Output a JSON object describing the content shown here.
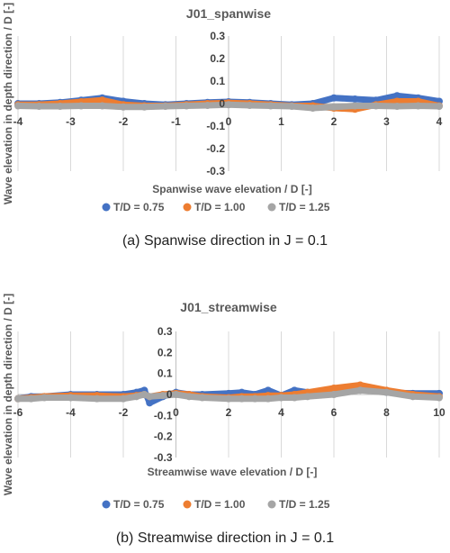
{
  "chart_data": [
    {
      "type": "scatter",
      "title": "J01_spanwise",
      "xlabel": "Spanwise wave elevation / D [-]",
      "ylabel": "Wave elevation in depth direction / D [-]",
      "xlim": [
        -4,
        4
      ],
      "ylim": [
        -0.3,
        0.3
      ],
      "x_ticks": [
        "-4",
        "-3",
        "-2",
        "-1",
        "0",
        "1",
        "2",
        "3",
        "4"
      ],
      "y_ticks": [
        "0.3",
        "0.2",
        "0.1",
        "0",
        "-0.1",
        "-0.2",
        "-0.3"
      ],
      "grid": "vertical",
      "legend_position": "bottom",
      "caption": "(a) Spanwise direction in J = 0.1",
      "series": [
        {
          "name": "T/D = 0.75",
          "color": "#4472C4",
          "x": [
            -4,
            -3.6,
            -3.2,
            -2.8,
            -2.4,
            -2.0,
            -1.6,
            -1.2,
            -0.8,
            -0.4,
            0,
            0.4,
            0.8,
            1.2,
            1.6,
            2.0,
            2.4,
            2.8,
            3.2,
            3.6,
            4
          ],
          "y": [
            0.0,
            0.0,
            0.005,
            0.015,
            0.025,
            0.01,
            0.0,
            -0.005,
            0.0,
            0.005,
            0.008,
            0.005,
            0.0,
            -0.005,
            0.0,
            0.025,
            0.02,
            0.015,
            0.035,
            0.025,
            0.01
          ]
        },
        {
          "name": "T/D = 1.00",
          "color": "#ED7D31",
          "x": [
            -4,
            -3.6,
            -3.2,
            -2.8,
            -2.4,
            -2.0,
            -1.6,
            -1.2,
            -0.8,
            -0.4,
            0,
            0.4,
            0.8,
            1.2,
            1.6,
            2.0,
            2.4,
            2.8,
            3.2,
            3.6,
            4
          ],
          "y": [
            -0.005,
            -0.005,
            0.0,
            0.008,
            0.015,
            -0.005,
            -0.01,
            -0.01,
            -0.005,
            0.0,
            0.003,
            0.0,
            -0.005,
            -0.01,
            -0.01,
            -0.02,
            -0.025,
            -0.005,
            0.01,
            0.01,
            -0.01
          ]
        },
        {
          "name": "T/D = 1.25",
          "color": "#A5A5A5",
          "x": [
            -4,
            -3.6,
            -3.2,
            -2.8,
            -2.4,
            -2.0,
            -1.6,
            -1.2,
            -0.8,
            -0.4,
            0,
            0.4,
            0.8,
            1.2,
            1.6,
            2.0,
            2.4,
            2.8,
            3.2,
            3.6,
            4
          ],
          "y": [
            -0.01,
            -0.012,
            -0.012,
            -0.01,
            -0.01,
            -0.015,
            -0.015,
            -0.012,
            -0.01,
            -0.008,
            -0.005,
            -0.008,
            -0.01,
            -0.012,
            -0.02,
            -0.015,
            -0.01,
            -0.01,
            -0.012,
            -0.01,
            -0.012
          ]
        }
      ]
    },
    {
      "type": "scatter",
      "title": "J01_streamwise",
      "xlabel": "Streamwise wave elevation / D [-]",
      "ylabel": "Wave elevation in depth direction / D [-]",
      "xlim": [
        -6,
        10
      ],
      "ylim": [
        -0.3,
        0.3
      ],
      "x_ticks": [
        "-6",
        "-4",
        "-2",
        "0",
        "2",
        "4",
        "6",
        "8",
        "10"
      ],
      "y_ticks": [
        "0.3",
        "0.2",
        "0.1",
        "0",
        "-0.1",
        "-0.2",
        "-0.3"
      ],
      "grid": "vertical",
      "legend_position": "bottom",
      "caption": "(b) Streamwise direction in J = 0.1",
      "series": [
        {
          "name": "T/D = 0.75",
          "color": "#4472C4",
          "x": [
            -6,
            -5.5,
            -5,
            -4,
            -3,
            -2,
            -1.5,
            -1.2,
            -1.0,
            -0.5,
            0,
            0.5,
            1,
            2,
            2.5,
            3,
            3.5,
            4,
            4.5,
            5,
            6,
            7,
            8,
            9,
            10
          ],
          "y": [
            -0.02,
            -0.01,
            -0.01,
            0.0,
            0.0,
            0.0,
            0.01,
            0.02,
            -0.04,
            -0.01,
            0.01,
            0.0,
            0.0,
            0.005,
            0.01,
            0.0,
            0.02,
            -0.005,
            0.02,
            0.01,
            0.02,
            0.03,
            0.01,
            0.005,
            0.005
          ]
        },
        {
          "name": "T/D = 1.00",
          "color": "#ED7D31",
          "x": [
            -6,
            -5.5,
            -5,
            -4,
            -3,
            -2,
            -1.5,
            -1.2,
            -1.0,
            -0.5,
            0,
            0.5,
            1,
            2,
            2.5,
            3,
            3.5,
            4,
            4.5,
            5,
            6,
            7,
            8,
            9,
            10
          ],
          "y": [
            -0.02,
            -0.015,
            -0.01,
            -0.005,
            -0.005,
            -0.01,
            -0.005,
            0.0,
            -0.01,
            0.0,
            0.005,
            0.0,
            -0.01,
            -0.015,
            -0.01,
            -0.01,
            -0.005,
            -0.005,
            0.0,
            0.01,
            0.03,
            0.045,
            0.02,
            0.0,
            -0.01
          ]
        },
        {
          "name": "T/D = 1.25",
          "color": "#A5A5A5",
          "x": [
            -6,
            -5.5,
            -5,
            -4,
            -3,
            -2,
            -1.5,
            -1.2,
            -1.0,
            -0.5,
            0,
            0.5,
            1,
            2,
            2.5,
            3,
            3.5,
            4,
            4.5,
            5,
            6,
            7,
            8,
            9,
            10
          ],
          "y": [
            -0.02,
            -0.02,
            -0.015,
            -0.015,
            -0.02,
            -0.02,
            -0.01,
            0.0,
            -0.01,
            -0.005,
            0.0,
            -0.01,
            -0.015,
            -0.02,
            -0.02,
            -0.02,
            -0.02,
            -0.015,
            -0.015,
            -0.01,
            0.0,
            0.02,
            0.01,
            -0.01,
            -0.015
          ]
        }
      ]
    }
  ]
}
